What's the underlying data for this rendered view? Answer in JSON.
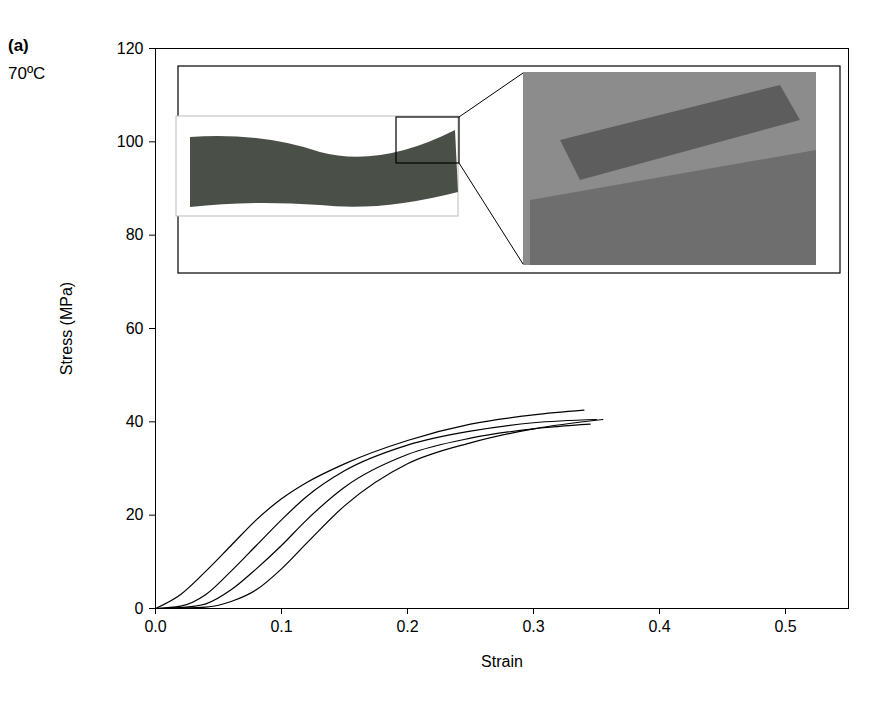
{
  "chart_data": {
    "type": "line",
    "panel_label": "(a)",
    "annotations": [
      "70ºC"
    ],
    "x_label": "Strain",
    "y_label": "Stress (MPa)",
    "color": "#000000",
    "xlim": [
      0,
      0.55
    ],
    "xticks": [
      {
        "value": 0,
        "label": "0.0"
      },
      0.1,
      0.2,
      0.3,
      0.4,
      0.5
    ],
    "ylim": [
      0,
      120
    ],
    "yticks": [
      0,
      20,
      40,
      60,
      80,
      100,
      120
    ],
    "grid": false,
    "series": [
      {
        "x": [
          0,
          0.02,
          0.04,
          0.06,
          0.08,
          0.1,
          0.12,
          0.15,
          0.2,
          0.25,
          0.3,
          0.34
        ],
        "values": [
          0,
          3,
          8,
          13.5,
          19,
          23.5,
          27,
          31,
          36,
          39.5,
          41.5,
          42.5
        ]
      },
      {
        "x": [
          0,
          0.02,
          0.04,
          0.06,
          0.08,
          0.1,
          0.12,
          0.15,
          0.2,
          0.25,
          0.3,
          0.35
        ],
        "values": [
          0,
          0.5,
          3,
          8,
          13.5,
          19,
          24,
          29.5,
          35,
          38,
          39.8,
          40.5
        ]
      },
      {
        "x": [
          0,
          0.02,
          0.04,
          0.06,
          0.08,
          0.1,
          0.12,
          0.15,
          0.2,
          0.25,
          0.3,
          0.345
        ],
        "values": [
          0,
          0.2,
          1,
          4,
          8.5,
          13.5,
          19,
          26,
          33,
          36.5,
          38.5,
          39.5
        ]
      },
      {
        "x": [
          0,
          0.04,
          0.06,
          0.08,
          0.1,
          0.12,
          0.15,
          0.2,
          0.25,
          0.3,
          0.355
        ],
        "values": [
          0,
          0.3,
          1.5,
          4,
          8.5,
          14,
          22,
          31,
          35.5,
          38.5,
          40.5
        ]
      }
    ]
  }
}
